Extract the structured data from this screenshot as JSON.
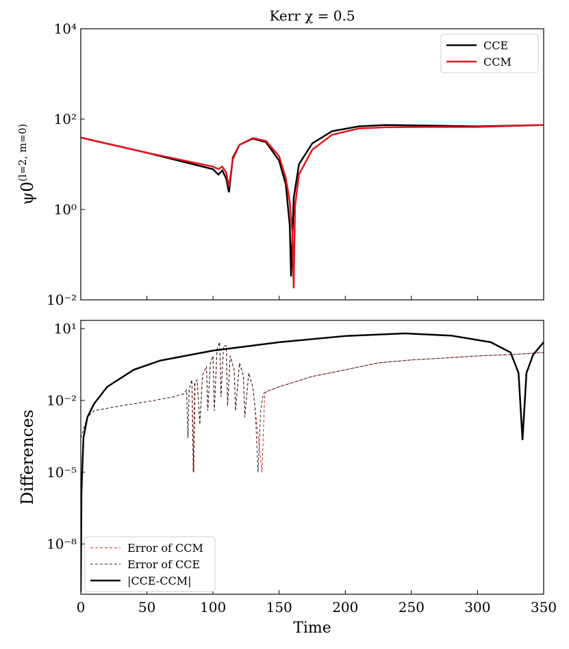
{
  "chart_data": [
    {
      "type": "line",
      "title": "Kerr χ = 0.5",
      "ylabel": "ψ0",
      "ylabel_superscript": "(l=2, m=0)",
      "log_y": true,
      "legend": "upper right",
      "xlim": [
        0,
        350
      ],
      "xticks": [
        0,
        50,
        100,
        150,
        200,
        250,
        300,
        350
      ],
      "ylim": [
        0.01,
        10000
      ],
      "yticks": [
        {
          "value": 0.01,
          "label": "10⁻²"
        },
        {
          "value": 1,
          "label": "10⁰"
        },
        {
          "value": 100,
          "label": "10²"
        },
        {
          "value": 10000,
          "label": "10⁴"
        }
      ],
      "series": [
        {
          "name": "CCE",
          "color": "#000000",
          "linestyle": "solid",
          "x": [
            0,
            50,
            100,
            104,
            107,
            110,
            112,
            115,
            120,
            130,
            140,
            150,
            155,
            158,
            159,
            161,
            165,
            175,
            190,
            210,
            230,
            260,
            300,
            350
          ],
          "values": [
            39,
            18,
            7.8,
            5.9,
            7.3,
            4.8,
            2.4,
            14,
            27,
            37,
            31,
            12,
            3.6,
            0.45,
            0.033,
            1.8,
            10,
            29,
            54,
            69,
            74,
            72,
            69,
            74
          ]
        },
        {
          "name": "CCM",
          "color": "#e8141b",
          "linestyle": "solid",
          "x": [
            0,
            50,
            100,
            104,
            107,
            110,
            112,
            115,
            120,
            130,
            140,
            150,
            155,
            158,
            160,
            161,
            162,
            165,
            175,
            190,
            210,
            230,
            260,
            300,
            350
          ],
          "values": [
            39,
            18,
            8.9,
            7.8,
            8.9,
            6.5,
            3.2,
            13,
            27,
            38,
            33,
            15,
            5,
            1.5,
            0.3,
            0.018,
            1.2,
            6,
            21,
            45,
            62,
            66,
            67,
            67,
            74
          ]
        }
      ]
    },
    {
      "type": "line",
      "xlabel": "Time",
      "ylabel": "Differences",
      "log_y": true,
      "legend": "lower left",
      "xlim": [
        0,
        350
      ],
      "xticks": [
        0,
        50,
        100,
        150,
        200,
        250,
        300,
        350
      ],
      "ylim": [
        8e-11,
        22
      ],
      "yticks": [
        {
          "value": 1e-08,
          "label": "10⁻⁸"
        },
        {
          "value": 1e-05,
          "label": "10⁻⁵"
        },
        {
          "value": 0.01,
          "label": "10⁻²"
        },
        {
          "value": 10,
          "label": "10¹"
        }
      ],
      "series": [
        {
          "name": "Error of CCM",
          "color": "#e8141b",
          "linestyle": "dashed",
          "x": [
            0,
            5,
            10,
            30,
            50,
            70,
            78,
            80,
            81,
            82,
            84,
            85.5,
            86.5,
            88,
            90,
            92,
            95,
            96,
            98,
            100,
            101,
            103,
            105,
            106,
            108,
            110,
            111,
            113,
            116,
            117,
            120,
            123,
            124,
            127,
            130,
            132,
            137,
            139,
            140,
            150,
            175,
            200,
            225,
            250,
            275,
            300,
            325,
            350
          ],
          "values": [
            0.00027,
            0.002,
            0.0037,
            0.0059,
            0.0088,
            0.014,
            0.019,
            0.027,
            0.00027,
            0.031,
            0.072,
            1e-05,
            0.052,
            0.072,
            0.001,
            0.11,
            0.27,
            0.0037,
            0.37,
            0.72,
            0.0037,
            1.4,
            2.7,
            0.014,
            1.9,
            1.9,
            0.0059,
            0.72,
            0.19,
            0.0037,
            0.37,
            0.1,
            0.002,
            0.14,
            0.037,
            0.0037,
            1e-05,
            0.015,
            0.023,
            0.037,
            0.1,
            0.19,
            0.37,
            0.49,
            0.59,
            0.72,
            0.82,
            1.0
          ]
        },
        {
          "name": "Error of CCE",
          "color": "#222222",
          "linestyle": "dashed",
          "x": [
            0,
            5,
            10,
            30,
            50,
            70,
            78,
            80,
            81,
            82,
            84,
            85,
            86,
            88,
            90,
            92,
            95,
            96,
            98,
            100,
            101,
            103,
            105,
            106,
            108,
            110,
            111,
            113,
            116,
            117,
            120,
            123,
            124,
            127,
            130,
            132,
            134,
            136,
            138,
            140,
            150,
            175,
            200,
            225,
            250,
            275,
            300,
            325,
            350
          ],
          "values": [
            0.00027,
            0.002,
            0.0037,
            0.0059,
            0.0088,
            0.014,
            0.019,
            0.027,
            0.00027,
            0.031,
            0.072,
            1e-05,
            0.052,
            0.072,
            0.001,
            0.11,
            0.27,
            0.0037,
            0.37,
            0.72,
            0.0037,
            1.4,
            2.7,
            0.014,
            1.9,
            1.9,
            0.0059,
            0.72,
            0.19,
            0.0037,
            0.37,
            0.1,
            0.002,
            0.14,
            0.037,
            0.0037,
            1e-05,
            0.0037,
            0.019,
            0.023,
            0.037,
            0.1,
            0.19,
            0.37,
            0.49,
            0.59,
            0.72,
            0.82,
            1.0
          ]
        },
        {
          "name": "|CCE-CCM|",
          "color": "#000000",
          "linestyle": "solid",
          "x": [
            0,
            0.5,
            2,
            5,
            10,
            20,
            40,
            60,
            100,
            150,
            200,
            245,
            280,
            310,
            325,
            331,
            334,
            337,
            342,
            350
          ],
          "values": [
            1e-10,
            1.4e-06,
            0.00027,
            0.002,
            0.0072,
            0.037,
            0.19,
            0.46,
            1.2,
            2.7,
            4.9,
            6.3,
            5.1,
            2.7,
            1.0,
            0.14,
            0.00022,
            0.14,
            0.8,
            2.7
          ]
        }
      ]
    }
  ]
}
